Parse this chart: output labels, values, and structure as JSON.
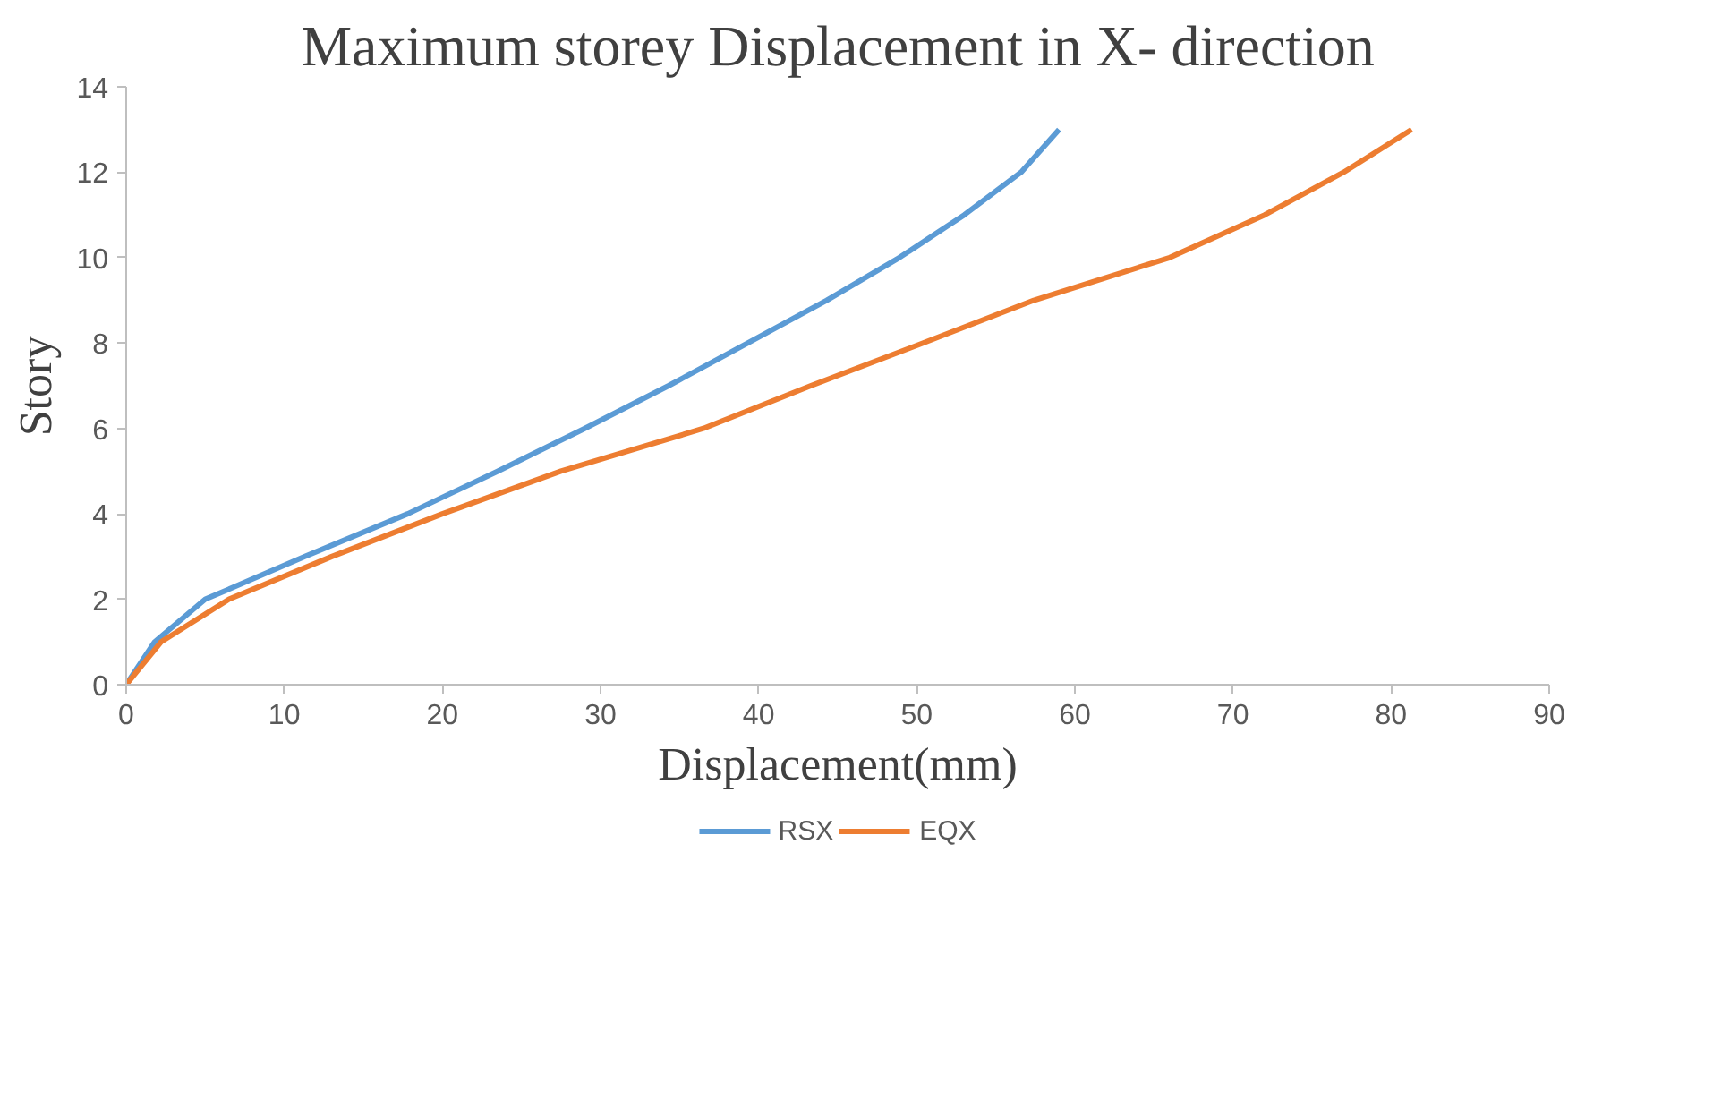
{
  "chart_data": {
    "type": "line",
    "title": "Maximum storey Displacement in X- direction",
    "xlabel": "Displacement(mm)",
    "ylabel": "Story",
    "xlim": [
      0,
      90
    ],
    "xticks": [
      0,
      10,
      20,
      30,
      40,
      50,
      60,
      70,
      80,
      90
    ],
    "ylim": [
      0,
      14
    ],
    "yticks": [
      0,
      2,
      4,
      6,
      8,
      10,
      12,
      14
    ],
    "grid": false,
    "legend": "bottom",
    "marker": "none",
    "line_style": "solid",
    "series": [
      {
        "name": "RSX",
        "color": "#5b9bd5",
        "x": [
          0,
          1.8,
          5,
          11.3,
          17.8,
          23.5,
          29,
          34.3,
          39.3,
          44.3,
          48.9,
          53,
          56.6,
          59
        ],
        "values": [
          0,
          1,
          2,
          3,
          4,
          5,
          6,
          7,
          8,
          9,
          10,
          11,
          12,
          13
        ]
      },
      {
        "name": "EQX",
        "color": "#ed7d31",
        "x": [
          0,
          2.2,
          6.5,
          13,
          20,
          27.5,
          36.5,
          43.3,
          50.4,
          57.4,
          66,
          72,
          77,
          81.3
        ],
        "values": [
          0,
          1,
          2,
          3,
          4,
          5,
          6,
          7,
          8,
          9,
          10,
          11,
          12,
          13
        ]
      }
    ]
  }
}
